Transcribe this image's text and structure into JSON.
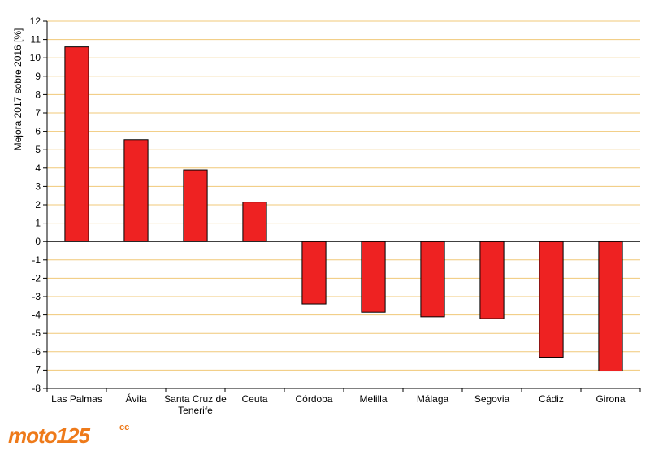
{
  "chart_data": {
    "type": "bar",
    "categories": [
      "Las Palmas",
      "Ávila",
      "Santa Cruz de Tenerife",
      "Ceuta",
      "Córdoba",
      "Melilla",
      "Málaga",
      "Segovia",
      "Cádiz",
      "Girona"
    ],
    "category_lines": [
      [
        "Las Palmas"
      ],
      [
        "Ávila"
      ],
      [
        "Santa Cruz de",
        "Tenerife"
      ],
      [
        "Ceuta"
      ],
      [
        "Córdoba"
      ],
      [
        "Melilla"
      ],
      [
        "Málaga"
      ],
      [
        "Segovia"
      ],
      [
        "Cádiz"
      ],
      [
        "Girona"
      ]
    ],
    "values": [
      10.6,
      5.55,
      3.9,
      2.15,
      -3.4,
      -3.85,
      -4.1,
      -4.2,
      -6.3,
      -7.05
    ],
    "ylabel": "Mejora 2017 sobre 2016 [%]",
    "xlabel": "",
    "title": "",
    "ylim": [
      -8,
      12
    ],
    "yticks": [
      12,
      11,
      10,
      9,
      8,
      7,
      6,
      5,
      4,
      3,
      2,
      1,
      0,
      -1,
      -2,
      -3,
      -4,
      -5,
      -6,
      -7,
      -8
    ],
    "grid": true,
    "bar_color": "#ee2222",
    "grid_color": "#f0c878"
  },
  "logo": {
    "text": "moto125",
    "superscript": "cc",
    "color": "#ee7a1a"
  }
}
